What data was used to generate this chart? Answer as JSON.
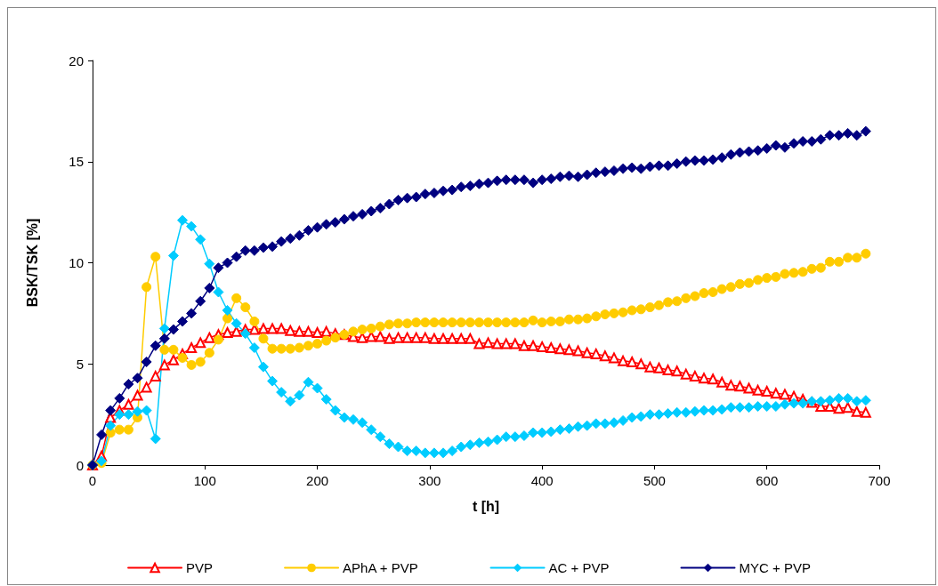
{
  "chart_data": {
    "type": "line",
    "xlabel": "t [h]",
    "ylabel": "BSK/TSK [%]",
    "x": [
      0,
      8,
      16,
      24,
      32,
      40,
      48,
      56,
      64,
      72,
      80,
      88,
      96,
      104,
      112,
      120,
      128,
      136,
      144,
      152,
      160,
      168,
      176,
      184,
      192,
      200,
      208,
      216,
      224,
      232,
      240,
      248,
      256,
      264,
      272,
      280,
      288,
      296,
      304,
      312,
      320,
      328,
      336,
      344,
      352,
      360,
      368,
      376,
      384,
      392,
      400,
      408,
      416,
      424,
      432,
      440,
      448,
      456,
      464,
      472,
      480,
      488,
      496,
      504,
      512,
      520,
      528,
      536,
      544,
      552,
      560,
      568,
      576,
      584,
      592,
      600,
      608,
      616,
      624,
      632,
      640,
      648,
      656,
      664,
      672,
      680,
      688
    ],
    "xlim": [
      0,
      700
    ],
    "xticks": [
      0,
      100,
      200,
      300,
      400,
      500,
      600,
      700
    ],
    "ylim": [
      0,
      20
    ],
    "yticks": [
      0,
      5,
      10,
      15,
      20
    ],
    "grid": false,
    "legend": "bottom",
    "line_style": "solid",
    "series": [
      {
        "name": "PVP",
        "color": "#ff0000",
        "marker": "triangle",
        "values": [
          0,
          0.45,
          2.35,
          2.7,
          3.0,
          3.45,
          3.85,
          4.4,
          4.95,
          5.2,
          5.5,
          5.8,
          6.05,
          6.3,
          6.45,
          6.55,
          6.6,
          6.7,
          6.7,
          6.75,
          6.75,
          6.75,
          6.65,
          6.6,
          6.6,
          6.55,
          6.6,
          6.5,
          6.45,
          6.35,
          6.3,
          6.35,
          6.35,
          6.25,
          6.3,
          6.3,
          6.3,
          6.3,
          6.25,
          6.25,
          6.25,
          6.25,
          6.25,
          6.0,
          6.05,
          6.0,
          6.0,
          6.0,
          5.9,
          5.9,
          5.85,
          5.8,
          5.75,
          5.7,
          5.65,
          5.55,
          5.5,
          5.4,
          5.3,
          5.15,
          5.1,
          5.0,
          4.85,
          4.8,
          4.7,
          4.65,
          4.5,
          4.4,
          4.3,
          4.25,
          4.1,
          3.95,
          3.9,
          3.8,
          3.7,
          3.65,
          3.55,
          3.5,
          3.4,
          3.25,
          3.1,
          2.9,
          2.9,
          2.8,
          2.85,
          2.65,
          2.6
        ]
      },
      {
        "name": "APhA + PVP",
        "color": "#ffcc00",
        "marker": "circle",
        "values": [
          0,
          0.1,
          1.6,
          1.75,
          1.75,
          2.35,
          8.8,
          10.3,
          5.7,
          5.7,
          5.3,
          4.95,
          5.1,
          5.55,
          6.2,
          7.25,
          8.25,
          7.8,
          7.1,
          6.25,
          5.75,
          5.75,
          5.75,
          5.8,
          5.9,
          6.0,
          6.15,
          6.3,
          6.45,
          6.6,
          6.7,
          6.75,
          6.85,
          6.95,
          7.0,
          7.0,
          7.05,
          7.05,
          7.05,
          7.05,
          7.05,
          7.05,
          7.05,
          7.05,
          7.05,
          7.05,
          7.05,
          7.05,
          7.05,
          7.15,
          7.05,
          7.1,
          7.1,
          7.2,
          7.2,
          7.25,
          7.35,
          7.45,
          7.5,
          7.55,
          7.65,
          7.7,
          7.8,
          7.9,
          8.05,
          8.1,
          8.25,
          8.35,
          8.5,
          8.55,
          8.7,
          8.8,
          8.95,
          9.0,
          9.15,
          9.25,
          9.3,
          9.45,
          9.5,
          9.55,
          9.7,
          9.75,
          10.05,
          10.05,
          10.25,
          10.25,
          10.45
        ]
      },
      {
        "name": "AC + PVP",
        "color": "#00ccff",
        "marker": "diamond",
        "values": [
          0,
          0.2,
          1.95,
          2.5,
          2.5,
          2.65,
          2.7,
          1.3,
          6.75,
          10.35,
          12.1,
          11.8,
          11.15,
          9.95,
          8.55,
          7.65,
          7.0,
          6.5,
          5.8,
          4.85,
          4.15,
          3.6,
          3.15,
          3.45,
          4.1,
          3.8,
          3.25,
          2.7,
          2.35,
          2.25,
          2.1,
          1.75,
          1.4,
          1.05,
          0.9,
          0.7,
          0.7,
          0.6,
          0.6,
          0.6,
          0.7,
          0.9,
          1.0,
          1.1,
          1.15,
          1.25,
          1.4,
          1.4,
          1.45,
          1.6,
          1.6,
          1.65,
          1.75,
          1.8,
          1.9,
          1.95,
          2.05,
          2.05,
          2.1,
          2.2,
          2.35,
          2.4,
          2.5,
          2.5,
          2.55,
          2.6,
          2.6,
          2.65,
          2.7,
          2.7,
          2.75,
          2.85,
          2.85,
          2.85,
          2.9,
          2.9,
          2.9,
          3.0,
          3.05,
          3.05,
          3.15,
          3.15,
          3.2,
          3.3,
          3.3,
          3.15,
          3.2
        ]
      },
      {
        "name": "MYC + PVP",
        "color": "#000080",
        "marker": "diamond",
        "values": [
          0,
          1.5,
          2.7,
          3.3,
          4.0,
          4.3,
          5.1,
          5.9,
          6.25,
          6.7,
          7.1,
          7.5,
          8.1,
          8.75,
          9.75,
          10.0,
          10.3,
          10.6,
          10.6,
          10.75,
          10.8,
          11.05,
          11.2,
          11.35,
          11.6,
          11.75,
          11.9,
          12.0,
          12.15,
          12.3,
          12.4,
          12.55,
          12.7,
          12.9,
          13.1,
          13.2,
          13.25,
          13.4,
          13.45,
          13.55,
          13.6,
          13.75,
          13.8,
          13.9,
          13.95,
          14.05,
          14.1,
          14.1,
          14.1,
          13.95,
          14.1,
          14.15,
          14.25,
          14.3,
          14.25,
          14.35,
          14.45,
          14.5,
          14.55,
          14.65,
          14.7,
          14.65,
          14.75,
          14.8,
          14.8,
          14.9,
          15.0,
          15.05,
          15.05,
          15.1,
          15.2,
          15.35,
          15.45,
          15.5,
          15.55,
          15.65,
          15.8,
          15.7,
          15.9,
          16.0,
          16.0,
          16.1,
          16.3,
          16.3,
          16.4,
          16.3,
          16.5
        ]
      }
    ]
  }
}
